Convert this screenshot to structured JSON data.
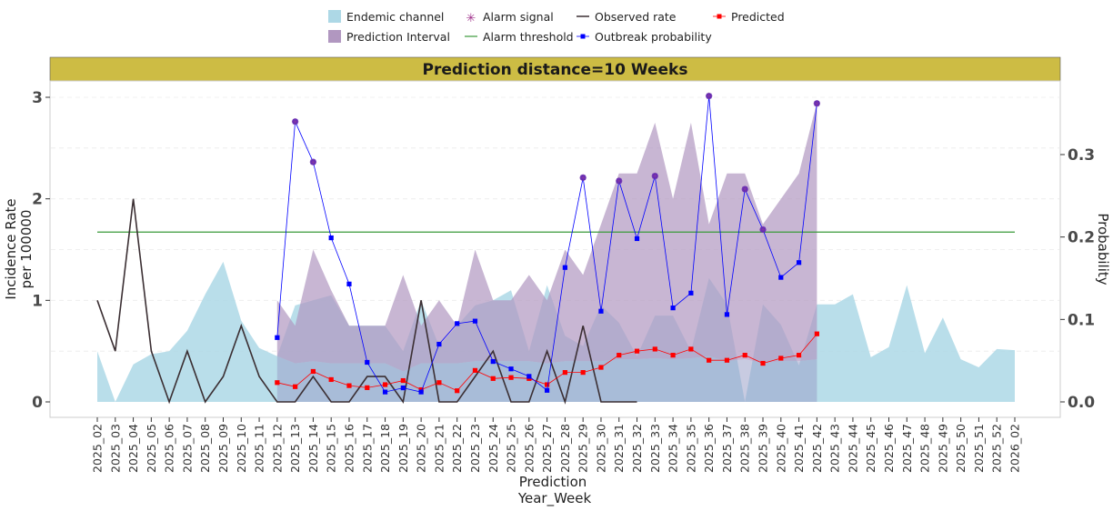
{
  "chart_data": {
    "type": "line",
    "title": "Prediction distance=10 Weeks",
    "xlabel_line1": "Prediction",
    "xlabel_line2": "Year_Week",
    "ylabel_line1": "Incidence Rate",
    "ylabel_line2": "per 100000",
    "y2label": "Probability",
    "ylim": [
      0,
      3.12
    ],
    "yticks": [
      "0",
      "1",
      "2",
      "3"
    ],
    "y2lim": [
      0,
      0.3812
    ],
    "y2ticks": [
      "0.0",
      "0.1",
      "0.2",
      "0.3"
    ],
    "grid": true,
    "legend_position": "top",
    "legend": {
      "endemic": "Endemic channel",
      "interval": "Prediction Interval",
      "alarm_signal": "Alarm signal",
      "alarm_threshold": "Alarm threshold",
      "observed": "Observed rate",
      "outbreak": "Outbreak probability",
      "predicted": "Predicted"
    },
    "colors": {
      "endemic": "#add8e6",
      "interval": "#b197c0",
      "alarm_signal": "#a0328c",
      "alarm_threshold": "#3a9a3a",
      "observed": "#3b2f33",
      "outbreak": "#0000ff",
      "predicted": "#ff0000",
      "title_band": "#cdbc44"
    },
    "categories": [
      "2025_02",
      "2025_03",
      "2025_04",
      "2025_05",
      "2025_06",
      "2025_07",
      "2025_08",
      "2025_09",
      "2025_10",
      "2025_11",
      "2025_12",
      "2025_13",
      "2025_14",
      "2025_15",
      "2025_16",
      "2025_17",
      "2025_18",
      "2025_19",
      "2025_20",
      "2025_21",
      "2025_22",
      "2025_23",
      "2025_24",
      "2025_25",
      "2025_26",
      "2025_27",
      "2025_28",
      "2025_29",
      "2025_30",
      "2025_31",
      "2025_32",
      "2025_33",
      "2025_34",
      "2025_35",
      "2025_36",
      "2025_37",
      "2025_38",
      "2025_39",
      "2025_40",
      "2025_41",
      "2025_42",
      "2025_43",
      "2025_44",
      "2025_45",
      "2025_46",
      "2025_47",
      "2025_48",
      "2025_49",
      "2025_50",
      "2025_51",
      "2025_52",
      "2026_02"
    ],
    "endemic_channel": [
      0.5,
      0,
      0.37,
      0.47,
      0.5,
      0.7,
      1.06,
      1.38,
      0.8,
      0.53,
      0.45,
      0.95,
      1.0,
      1.05,
      0.75,
      0.75,
      0.75,
      0.5,
      1.0,
      0.55,
      0.75,
      0.95,
      1.0,
      1.1,
      0.5,
      1.15,
      0.65,
      0.55,
      0.95,
      0.78,
      0.45,
      0.85,
      0.85,
      0.5,
      1.22,
      0.96,
      0,
      0.96,
      0.76,
      0.36,
      0.96,
      0.96,
      1.06,
      0.44,
      0.54,
      1.15,
      0.48,
      0.83,
      0.42,
      0.34,
      0.52,
      0.51
    ],
    "interval_start": 10,
    "interval_lower": [
      0.45,
      0.38,
      0.4,
      0.38,
      0.38,
      0.38,
      0.38,
      0.3,
      0.38,
      0.38,
      0.38,
      0.4,
      0.4,
      0.4,
      0.4,
      0.38,
      0.4,
      0.4,
      0.4,
      0.42,
      0.42,
      0.43,
      0.42,
      0.43,
      0.45,
      0.4,
      0.42,
      0.38,
      0.4,
      0.4,
      0.42
    ],
    "interval_upper": [
      1.0,
      0.75,
      1.5,
      1.1,
      0.75,
      0.75,
      0.75,
      1.25,
      0.75,
      1.0,
      0.75,
      1.5,
      1.0,
      1.0,
      1.25,
      1.0,
      1.5,
      1.25,
      1.75,
      2.25,
      2.25,
      2.75,
      2.0,
      2.75,
      1.75,
      2.25,
      2.25,
      1.75,
      2.0,
      2.25,
      2.95
    ],
    "observed_rate": [
      1.0,
      0.5,
      2.0,
      0.5,
      0,
      0.5,
      0,
      0.25,
      0.75,
      0.25,
      0,
      0,
      0.25,
      0,
      0,
      0.25,
      0.25,
      0,
      1.0,
      0,
      0,
      0.25,
      0.5,
      0,
      0,
      0.5,
      0,
      0.75,
      0,
      0,
      0
    ],
    "predicted_start": 10,
    "predicted": [
      0.19,
      0.15,
      0.3,
      0.22,
      0.16,
      0.14,
      0.17,
      0.21,
      0.12,
      0.19,
      0.11,
      0.31,
      0.23,
      0.24,
      0.23,
      0.17,
      0.29,
      0.29,
      0.34,
      0.46,
      0.5,
      0.52,
      0.46,
      0.52,
      0.41,
      0.41,
      0.46,
      0.38,
      0.43,
      0.46,
      0.67
    ],
    "outbreak_start": 10,
    "outbreak_probability": [
      0.078,
      0.34,
      0.291,
      0.199,
      0.143,
      0.048,
      0.012,
      0.017,
      0.012,
      0.07,
      0.095,
      0.098,
      0.049,
      0.04,
      0.031,
      0.014,
      0.163,
      0.272,
      0.11,
      0.268,
      0.198,
      0.274,
      0.114,
      0.132,
      0.371,
      0.106,
      0.258,
      0.209,
      0.151,
      0.169,
      0.362
    ],
    "alarm_signal": [
      {
        "x": "2025_13",
        "y": 0.34
      },
      {
        "x": "2025_14",
        "y": 0.291
      },
      {
        "x": "2025_29",
        "y": 0.272
      },
      {
        "x": "2025_31",
        "y": 0.268
      },
      {
        "x": "2025_33",
        "y": 0.274
      },
      {
        "x": "2025_36",
        "y": 0.371
      },
      {
        "x": "2025_38",
        "y": 0.258
      },
      {
        "x": "2025_39",
        "y": 0.209
      },
      {
        "x": "2025_42",
        "y": 0.362
      }
    ],
    "alarm_threshold": 0.206
  }
}
